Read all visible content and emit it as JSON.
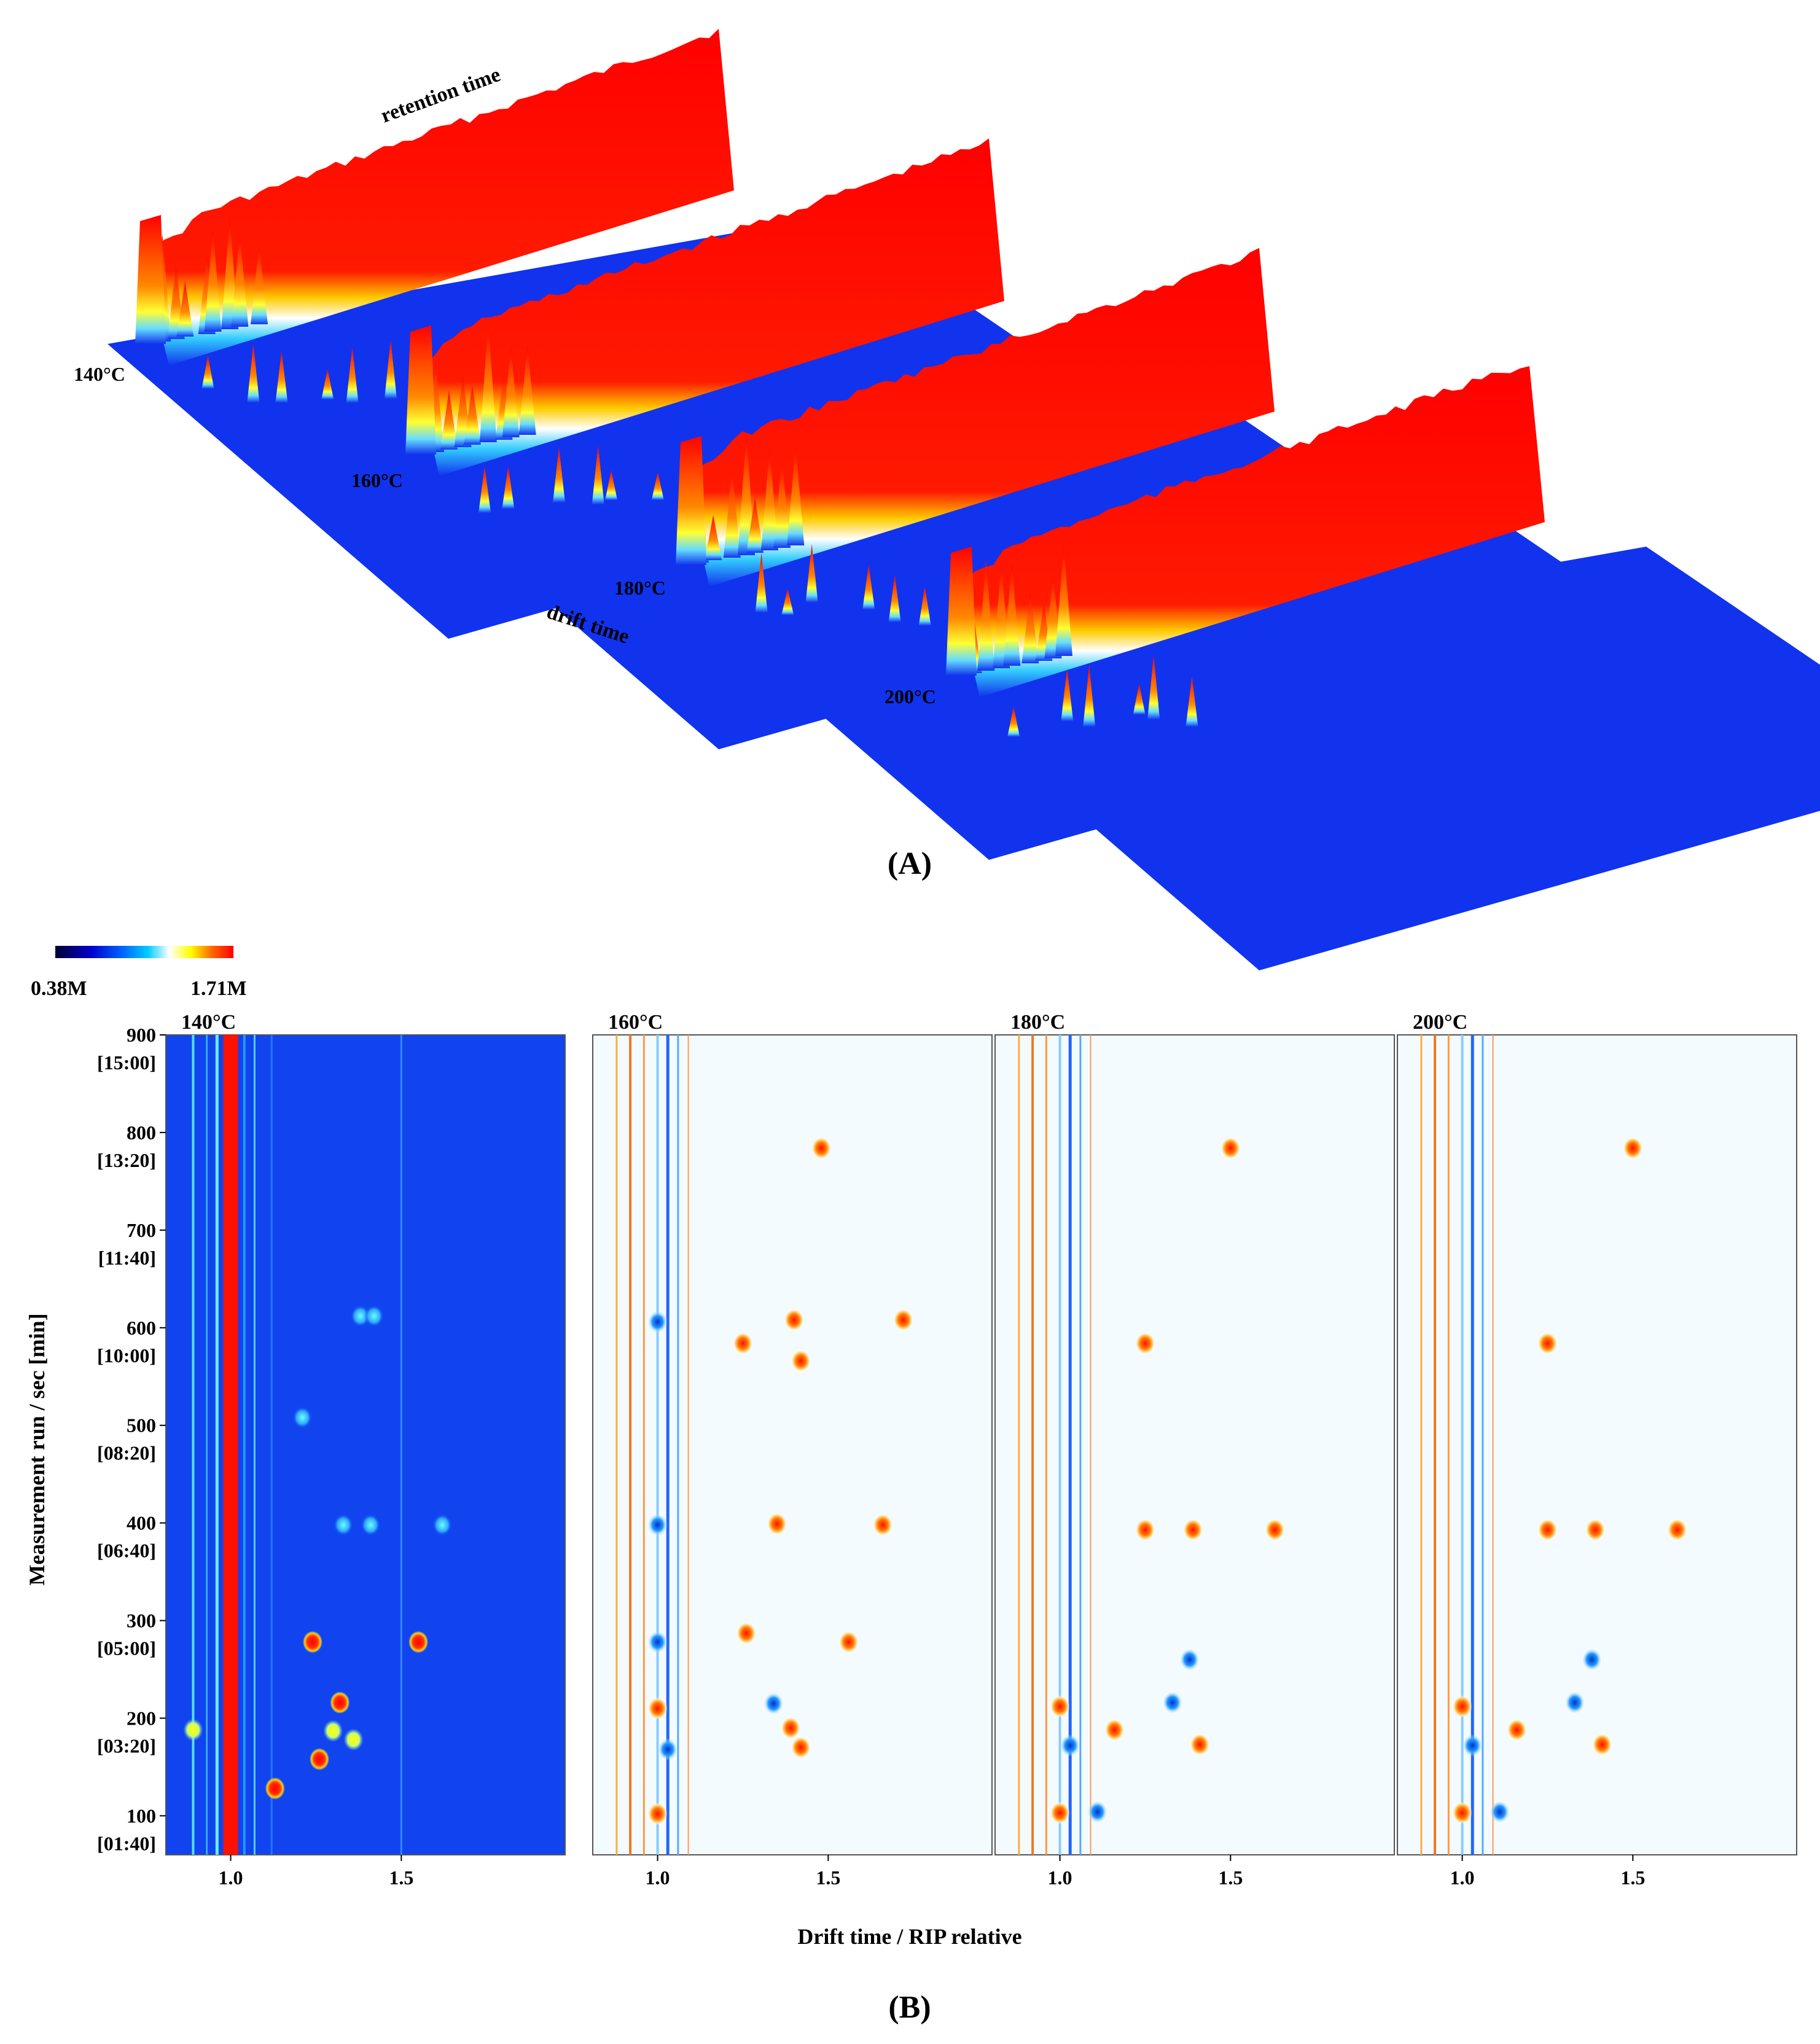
{
  "figure": {
    "panel_a_label": "(A)",
    "panel_b_label": "(B)"
  },
  "chart_data": [
    {
      "type": "surface-3d",
      "panel": "A",
      "axis_labels": {
        "retention": "retention time",
        "drift": "drift time"
      },
      "series": [
        {
          "name": "140°C"
        },
        {
          "name": "160°C"
        },
        {
          "name": "180°C"
        },
        {
          "name": "200°C"
        }
      ],
      "colormap": [
        "#000099",
        "#0033ff",
        "#00ccff",
        "#ffffff",
        "#ffff00",
        "#ff0000"
      ]
    },
    {
      "type": "heatmap",
      "panel": "B",
      "colorbar": {
        "min_label": "0.38M",
        "max_label": "1.71M",
        "colors": [
          "#000033",
          "#0000cc",
          "#0066ff",
          "#00ccff",
          "#ffffff",
          "#ffff00",
          "#ff6600",
          "#ff0000"
        ]
      },
      "xlabel": "Drift time / RIP relative",
      "ylabel": "Measurement run / sec [min]",
      "xlim": [
        0.81,
        1.98
      ],
      "ylim": [
        60,
        900
      ],
      "xticks": [
        1.0,
        1.5
      ],
      "xtick_labels": [
        "1.0",
        "1.5"
      ],
      "yticks": [
        {
          "value": 900,
          "label": "900",
          "sub": "[15:00]"
        },
        {
          "value": 800,
          "label": "800",
          "sub": "[13:20]"
        },
        {
          "value": 700,
          "label": "700",
          "sub": "[11:40]"
        },
        {
          "value": 600,
          "label": "600",
          "sub": "[10:00]"
        },
        {
          "value": 500,
          "label": "500",
          "sub": "[08:20]"
        },
        {
          "value": 400,
          "label": "400",
          "sub": "[06:40]"
        },
        {
          "value": 300,
          "label": "300",
          "sub": "[05:00]"
        },
        {
          "value": 200,
          "label": "200",
          "sub": "[03:20]"
        },
        {
          "value": 100,
          "label": "100",
          "sub": "[01:40]"
        }
      ],
      "panels": [
        {
          "name": "140°C",
          "mode": "absolute",
          "spots": [
            {
              "x": 1.24,
              "y": 278,
              "v": "red"
            },
            {
              "x": 1.55,
              "y": 278,
              "v": "red"
            },
            {
              "x": 1.32,
              "y": 216,
              "v": "red"
            },
            {
              "x": 0.89,
              "y": 188,
              "v": "yellow"
            },
            {
              "x": 1.26,
              "y": 158,
              "v": "red"
            },
            {
              "x": 1.13,
              "y": 128,
              "v": "red"
            },
            {
              "x": 1.36,
              "y": 178,
              "v": "yellow"
            },
            {
              "x": 1.3,
              "y": 187,
              "v": "yellow"
            },
            {
              "x": 1.33,
              "y": 398,
              "v": "cyan"
            },
            {
              "x": 1.41,
              "y": 398,
              "v": "cyan"
            },
            {
              "x": 1.62,
              "y": 398,
              "v": "cyan"
            },
            {
              "x": 1.38,
              "y": 612,
              "v": "cyan"
            },
            {
              "x": 1.21,
              "y": 508,
              "v": "cyan"
            },
            {
              "x": 1.42,
              "y": 612,
              "v": "cyan"
            }
          ]
        },
        {
          "name": "160°C",
          "mode": "difference",
          "spots": [
            {
              "x": 1.4,
              "y": 608,
              "v": "up"
            },
            {
              "x": 1.72,
              "y": 608,
              "v": "up"
            },
            {
              "x": 1.25,
              "y": 584,
              "v": "up"
            },
            {
              "x": 1.42,
              "y": 566,
              "v": "up"
            },
            {
              "x": 1.35,
              "y": 399,
              "v": "up"
            },
            {
              "x": 1.66,
              "y": 398,
              "v": "up"
            },
            {
              "x": 1.56,
              "y": 278,
              "v": "up"
            },
            {
              "x": 1.26,
              "y": 287,
              "v": "up"
            },
            {
              "x": 1.42,
              "y": 170,
              "v": "up"
            },
            {
              "x": 1.39,
              "y": 190,
              "v": "up"
            },
            {
              "x": 1.0,
              "y": 210,
              "v": "up"
            },
            {
              "x": 1.0,
              "y": 102,
              "v": "up"
            },
            {
              "x": 1.0,
              "y": 398,
              "v": "down"
            },
            {
              "x": 1.0,
              "y": 278,
              "v": "down"
            },
            {
              "x": 1.34,
              "y": 215,
              "v": "down"
            },
            {
              "x": 1.03,
              "y": 168,
              "v": "down"
            },
            {
              "x": 1.0,
              "y": 606,
              "v": "down"
            },
            {
              "x": 1.48,
              "y": 784,
              "v": "up"
            }
          ]
        },
        {
          "name": "180°C",
          "mode": "difference",
          "spots": [
            {
              "x": 1.25,
              "y": 584,
              "v": "up"
            },
            {
              "x": 1.25,
              "y": 393,
              "v": "up"
            },
            {
              "x": 1.39,
              "y": 393,
              "v": "up"
            },
            {
              "x": 1.63,
              "y": 393,
              "v": "up"
            },
            {
              "x": 1.41,
              "y": 173,
              "v": "up"
            },
            {
              "x": 1.0,
              "y": 212,
              "v": "up"
            },
            {
              "x": 1.0,
              "y": 103,
              "v": "up"
            },
            {
              "x": 1.16,
              "y": 188,
              "v": "up"
            },
            {
              "x": 1.33,
              "y": 216,
              "v": "down"
            },
            {
              "x": 1.03,
              "y": 172,
              "v": "down"
            },
            {
              "x": 1.11,
              "y": 104,
              "v": "down"
            },
            {
              "x": 1.38,
              "y": 260,
              "v": "down"
            },
            {
              "x": 1.5,
              "y": 784,
              "v": "up"
            }
          ]
        },
        {
          "name": "200°C",
          "mode": "difference",
          "spots": [
            {
              "x": 1.25,
              "y": 584,
              "v": "up"
            },
            {
              "x": 1.25,
              "y": 393,
              "v": "up"
            },
            {
              "x": 1.39,
              "y": 393,
              "v": "up"
            },
            {
              "x": 1.63,
              "y": 393,
              "v": "up"
            },
            {
              "x": 1.41,
              "y": 173,
              "v": "up"
            },
            {
              "x": 1.0,
              "y": 212,
              "v": "up"
            },
            {
              "x": 1.0,
              "y": 103,
              "v": "up"
            },
            {
              "x": 1.16,
              "y": 188,
              "v": "up"
            },
            {
              "x": 1.33,
              "y": 216,
              "v": "down"
            },
            {
              "x": 1.03,
              "y": 172,
              "v": "down"
            },
            {
              "x": 1.11,
              "y": 104,
              "v": "down"
            },
            {
              "x": 1.38,
              "y": 260,
              "v": "down"
            },
            {
              "x": 1.5,
              "y": 784,
              "v": "up"
            }
          ]
        }
      ]
    }
  ]
}
